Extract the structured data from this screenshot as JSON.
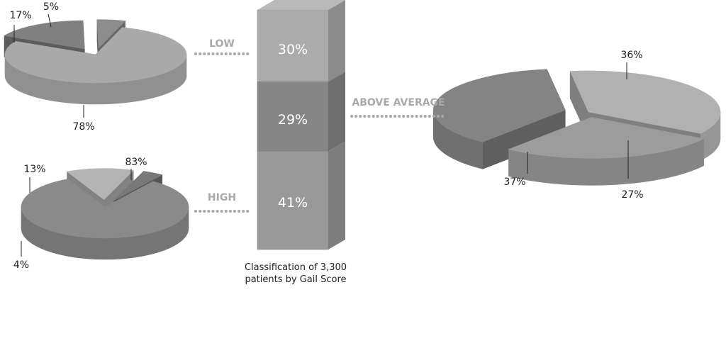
{
  "chart_data": [
    {
      "type": "bar",
      "stacked": true,
      "title": "",
      "categories": [
        "Classification of 3,300 patients by Gail Score"
      ],
      "series": [
        {
          "name": "LOW",
          "values": [
            30
          ],
          "label": "30%"
        },
        {
          "name": "ABOVE AVERAGE",
          "values": [
            29
          ],
          "label": "29%"
        },
        {
          "name": "HIGH",
          "values": [
            41
          ],
          "label": "41%"
        }
      ],
      "caption_lines": [
        "Classification of 3,300",
        "patients by Gail Score"
      ],
      "ylim": [
        0,
        100
      ]
    },
    {
      "type": "pie",
      "group": "LOW",
      "slices": [
        {
          "value": 78,
          "label": "78%",
          "color": "#a9a9a9"
        },
        {
          "value": 17,
          "label": "17%",
          "color": "#808080"
        },
        {
          "value": 5,
          "label": "5%",
          "color": "#8d8d8d"
        }
      ]
    },
    {
      "type": "pie",
      "group": "HIGH",
      "slices": [
        {
          "value": 83,
          "label": "83%",
          "color": "#8a8a8a"
        },
        {
          "value": 13,
          "label": "13%",
          "color": "#b4b4b4"
        },
        {
          "value": 4,
          "label": "4%",
          "color": "#787878"
        }
      ]
    },
    {
      "type": "pie",
      "group": "ABOVE AVERAGE",
      "slices": [
        {
          "value": 36,
          "label": "36%",
          "color": "#b1b1b1"
        },
        {
          "value": 27,
          "label": "27%",
          "color": "#9c9c9c"
        },
        {
          "value": 37,
          "label": "37%",
          "color": "#848484"
        }
      ]
    }
  ],
  "colors": {
    "bar_low": "#ababab",
    "bar_above_average": "#868686",
    "bar_high": "#999999",
    "connector": "#a9a9a9"
  }
}
